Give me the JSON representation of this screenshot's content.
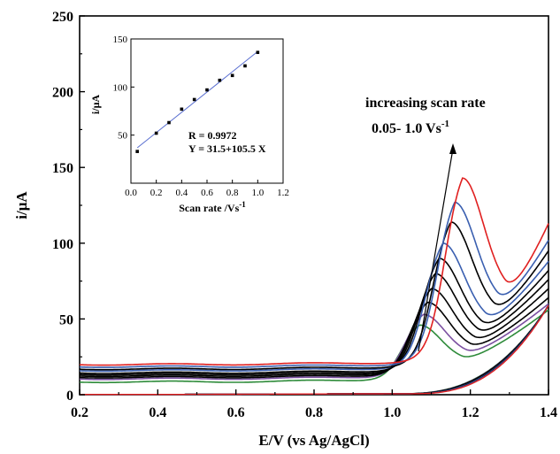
{
  "chart_data": [
    {
      "type": "line",
      "xlabel": "E/V (vs Ag/AgCl)",
      "ylabel": "i/μA",
      "xlim": [
        0.2,
        1.4
      ],
      "ylim": [
        0,
        250
      ],
      "xticks": [
        "0.2",
        "0.4",
        "0.6",
        "0.8",
        "1.0",
        "1.2",
        "1.4"
      ],
      "yticks": [
        "0",
        "50",
        "100",
        "150",
        "200",
        "250"
      ],
      "grid": false,
      "annotations": {
        "arrow_label": "increasing scan rate",
        "range_label": "0.05- 1.0 Vs",
        "range_exp": "-1"
      },
      "series": [
        {
          "color": "#2e8b3a",
          "base": 8.5,
          "peak_v": 1.07,
          "peak_i": 46,
          "tail": 56
        },
        {
          "color": "#7a4fa0",
          "base": 10.5,
          "peak_v": 1.08,
          "peak_i": 53,
          "tail": 60
        },
        {
          "color": "#000000",
          "base": 11.5,
          "peak_v": 1.09,
          "peak_i": 61,
          "tail": 64
        },
        {
          "color": "#000000",
          "base": 12.5,
          "peak_v": 1.1,
          "peak_i": 70,
          "tail": 70
        },
        {
          "color": "#000000",
          "base": 13.5,
          "peak_v": 1.11,
          "peak_i": 80,
          "tail": 76
        },
        {
          "color": "#000000",
          "base": 14.5,
          "peak_v": 1.12,
          "peak_i": 90,
          "tail": 82
        },
        {
          "color": "#3a5fb0",
          "base": 16,
          "peak_v": 1.13,
          "peak_i": 100,
          "tail": 88
        },
        {
          "color": "#000000",
          "base": 17,
          "peak_v": 1.15,
          "peak_i": 114,
          "tail": 95
        },
        {
          "color": "#3a5fb0",
          "base": 18.5,
          "peak_v": 1.16,
          "peak_i": 127,
          "tail": 102
        },
        {
          "color": "#e02020",
          "base": 20,
          "peak_v": 1.18,
          "peak_i": 143,
          "tail": 113
        }
      ]
    },
    {
      "type": "scatter",
      "xlabel": "Scan rate /Vs",
      "xlabel_exp": "-1",
      "ylabel": "i/μA",
      "xlim": [
        0,
        1.2
      ],
      "ylim": [
        0,
        150
      ],
      "xticks": [
        "0.0",
        "0.2",
        "0.4",
        "0.6",
        "0.8",
        "1.0",
        "1.2"
      ],
      "yticks": [
        "50",
        "100",
        "150"
      ],
      "x": [
        0.05,
        0.2,
        0.3,
        0.4,
        0.5,
        0.6,
        0.7,
        0.8,
        0.9,
        1.0
      ],
      "y": [
        33,
        52,
        63,
        77,
        87,
        97,
        107,
        112,
        122,
        136
      ],
      "fit": {
        "intercept": 31.5,
        "slope": 105.5
      },
      "annotations": {
        "r_text": "R = 0.9972",
        "eq_text": "Y = 31.5+105.5 X"
      }
    }
  ]
}
